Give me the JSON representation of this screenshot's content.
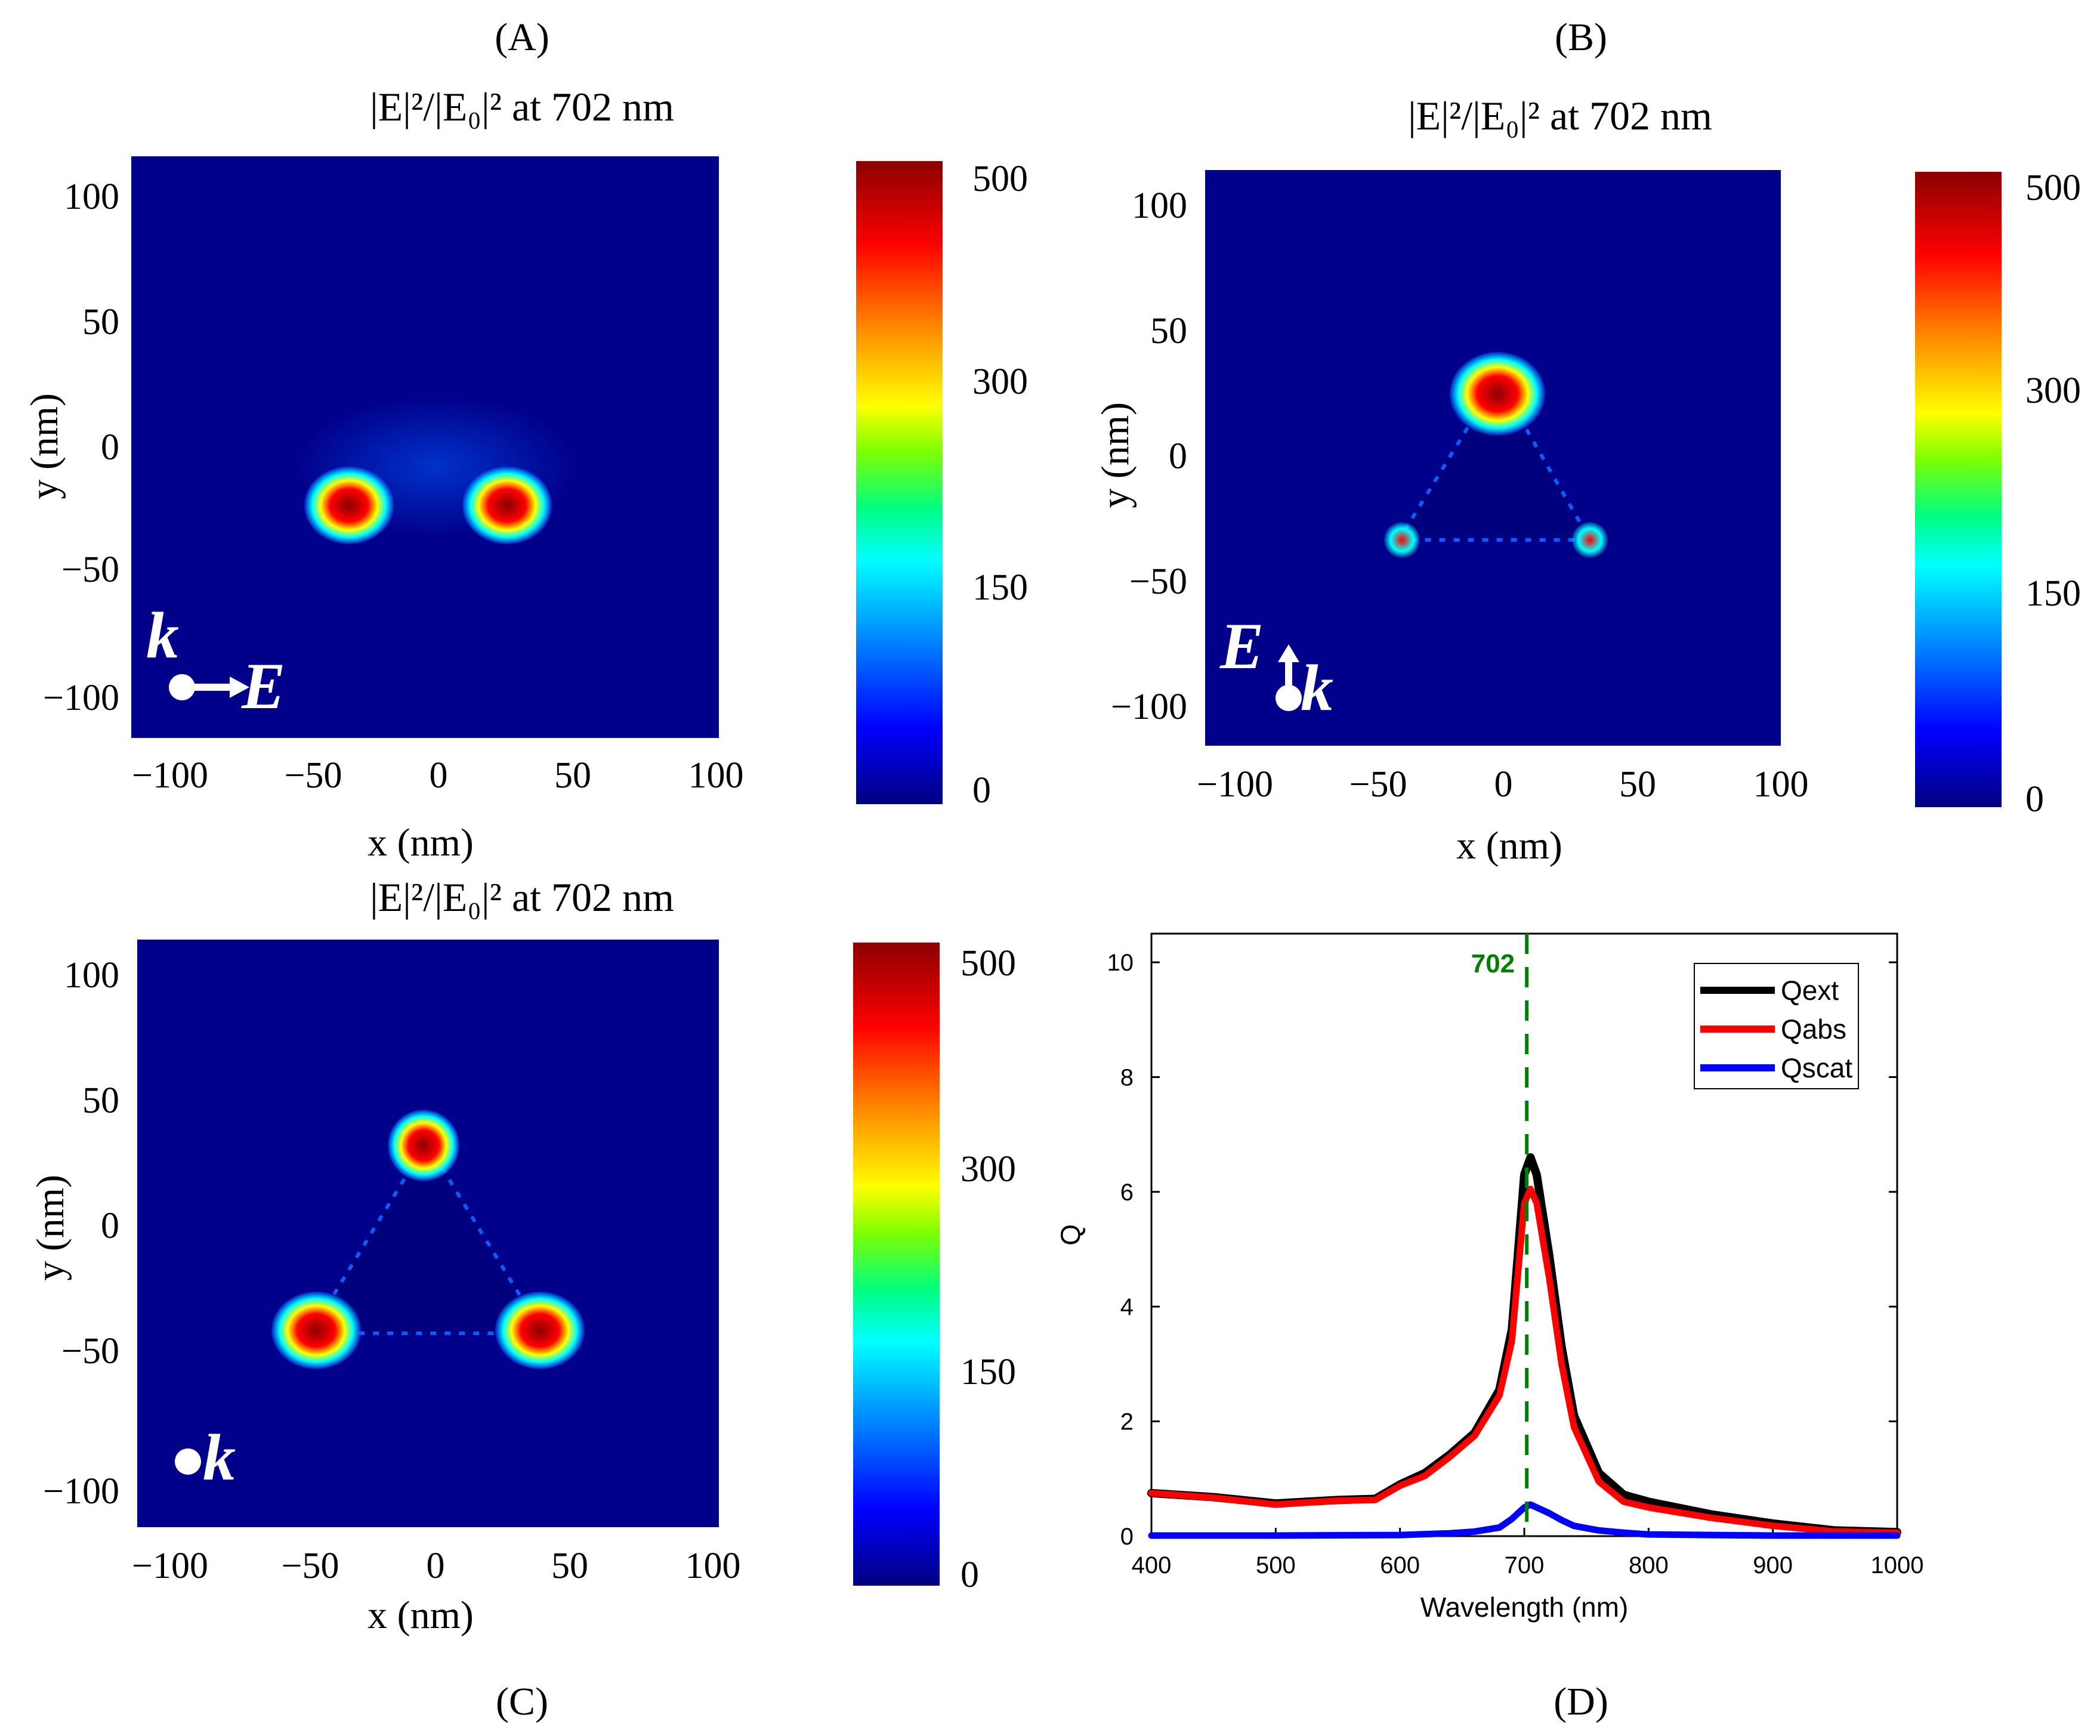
{
  "panels": {
    "A": {
      "letter": "(A)",
      "title": "|E|²/|E₀|² at 702 nm",
      "xlabel": "x (nm)",
      "ylabel": "y (nm)",
      "xticks": [
        "−100",
        "−50",
        "0",
        "50",
        "100"
      ],
      "yticks": [
        "100",
        "50",
        "0",
        "−50",
        "−100"
      ],
      "colorbar_ticks": [
        "500",
        "300",
        "150",
        "0"
      ],
      "annotation_k": "k",
      "annotation_e": "E"
    },
    "B": {
      "letter": "(B)",
      "title": "|E|²/|E₀|² at 702 nm",
      "xlabel": "x (nm)",
      "ylabel": "y (nm)",
      "xticks": [
        "−100",
        "−50",
        "0",
        "50",
        "100"
      ],
      "yticks": [
        "100",
        "50",
        "0",
        "−50",
        "−100"
      ],
      "colorbar_ticks": [
        "500",
        "300",
        "150",
        "0"
      ],
      "annotation_k": "k",
      "annotation_e": "E"
    },
    "C": {
      "letter": "(C)",
      "title": "|E|²/|E₀|² at 702 nm",
      "xlabel": "x (nm)",
      "ylabel": "y (nm)",
      "xticks": [
        "−100",
        "−50",
        "0",
        "50",
        "100"
      ],
      "yticks": [
        "100",
        "50",
        "0",
        "−50",
        "−100"
      ],
      "colorbar_ticks": [
        "500",
        "300",
        "150",
        "0"
      ],
      "annotation_k": "k"
    },
    "D": {
      "letter": "(D)"
    }
  },
  "chart_data": [
    {
      "type": "heatmap",
      "panel": "A",
      "title": "|E|²/|E₀|² at 702 nm",
      "xlabel": "x (nm)",
      "ylabel": "y (nm)",
      "xlim": [
        -115,
        105
      ],
      "ylim": [
        -115,
        115
      ],
      "colorbar_range": [
        0,
        500
      ],
      "colorbar_ticks": [
        0,
        150,
        300,
        500
      ],
      "hotspots": [
        {
          "x": -40,
          "y": -33
        },
        {
          "x": 30,
          "y": -33
        }
      ]
    },
    {
      "type": "heatmap",
      "panel": "B",
      "title": "|E|²/|E₀|² at 702 nm",
      "xlabel": "x (nm)",
      "ylabel": "y (nm)",
      "xlim": [
        -110,
        100
      ],
      "ylim": [
        -115,
        115
      ],
      "colorbar_range": [
        0,
        500
      ],
      "colorbar_ticks": [
        0,
        150,
        300,
        500
      ],
      "hotspots": [
        {
          "x": 0,
          "y": 30
        },
        {
          "x": -37,
          "y": -33
        },
        {
          "x": 33,
          "y": -33
        }
      ]
    },
    {
      "type": "heatmap",
      "panel": "C",
      "title": "|E|²/|E₀|² at 702 nm",
      "xlabel": "x (nm)",
      "ylabel": "y (nm)",
      "xlim": [
        -110,
        105
      ],
      "ylim": [
        -120,
        115
      ],
      "colorbar_range": [
        0,
        500
      ],
      "colorbar_ticks": [
        0,
        150,
        300,
        500
      ],
      "hotspots": [
        {
          "x": 0,
          "y": 36
        },
        {
          "x": -40,
          "y": -40
        },
        {
          "x": 40,
          "y": -40
        }
      ]
    },
    {
      "type": "line",
      "panel": "D",
      "xlabel": "Wavelength (nm)",
      "ylabel": "Q",
      "xlim": [
        400,
        1000
      ],
      "ylim": [
        0,
        10.5
      ],
      "xticks": [
        400,
        500,
        600,
        700,
        800,
        900,
        1000
      ],
      "yticks": [
        0,
        2,
        4,
        6,
        8,
        10
      ],
      "marker_line": {
        "x": 702,
        "label": "702",
        "color": "#008000"
      },
      "legend": [
        "Qext",
        "Qabs",
        "Qscat"
      ],
      "legend_position": "top-right",
      "series": [
        {
          "name": "Qext",
          "color": "#000000",
          "x": [
            400,
            450,
            500,
            550,
            580,
            600,
            620,
            640,
            660,
            680,
            690,
            700,
            705,
            710,
            720,
            730,
            740,
            760,
            780,
            800,
            850,
            900,
            950,
            1000
          ],
          "y": [
            0.75,
            0.68,
            0.57,
            0.63,
            0.65,
            0.9,
            1.1,
            1.42,
            1.8,
            2.55,
            3.6,
            6.3,
            6.6,
            6.3,
            4.9,
            3.3,
            2.1,
            1.1,
            0.72,
            0.6,
            0.38,
            0.22,
            0.1,
            0.07
          ]
        },
        {
          "name": "Qabs",
          "color": "#ff0000",
          "x": [
            400,
            450,
            500,
            550,
            580,
            600,
            620,
            640,
            660,
            680,
            690,
            700,
            705,
            710,
            720,
            730,
            740,
            760,
            780,
            800,
            850,
            900,
            950,
            1000
          ],
          "y": [
            0.75,
            0.67,
            0.55,
            0.62,
            0.63,
            0.88,
            1.05,
            1.38,
            1.75,
            2.45,
            3.4,
            5.8,
            6.05,
            5.8,
            4.5,
            3.0,
            1.9,
            0.95,
            0.6,
            0.5,
            0.32,
            0.18,
            0.08,
            0.06
          ]
        },
        {
          "name": "Qscat",
          "color": "#0000ff",
          "x": [
            400,
            500,
            600,
            640,
            660,
            680,
            690,
            700,
            705,
            710,
            720,
            730,
            740,
            760,
            780,
            800,
            850,
            900,
            1000
          ],
          "y": [
            0.01,
            0.01,
            0.02,
            0.05,
            0.08,
            0.15,
            0.3,
            0.5,
            0.55,
            0.5,
            0.4,
            0.28,
            0.18,
            0.1,
            0.06,
            0.03,
            0.02,
            0.01,
            0.01
          ]
        }
      ]
    }
  ]
}
